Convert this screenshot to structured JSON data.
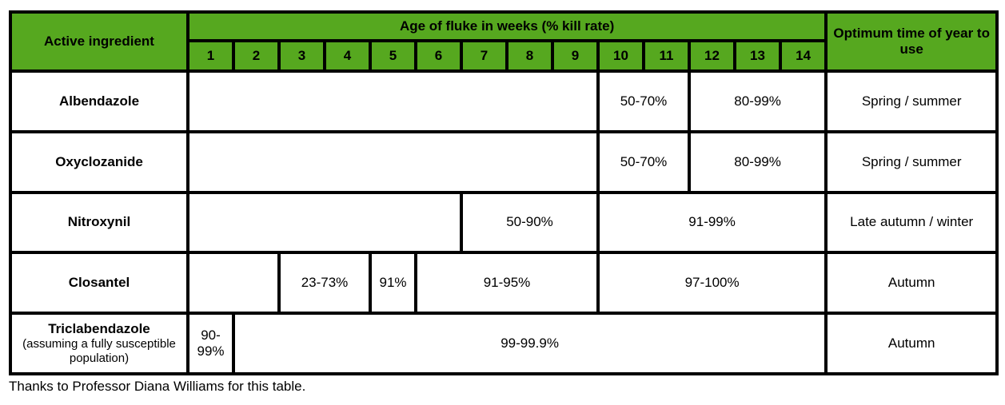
{
  "table": {
    "header": {
      "ingredient": "Active ingredient",
      "age": "Age of fluke in weeks (% kill rate)",
      "optimum": "Optimum time of year to use",
      "weeks": [
        "1",
        "2",
        "3",
        "4",
        "5",
        "6",
        "7",
        "8",
        "9",
        "10",
        "11",
        "12",
        "13",
        "14"
      ]
    },
    "rows": [
      {
        "name": "Albendazole",
        "subtitle": "",
        "segments": [
          {
            "label": "",
            "start_week": 1,
            "end_week": 9
          },
          {
            "label": "50-70%",
            "start_week": 10,
            "end_week": 11
          },
          {
            "label": "80-99%",
            "start_week": 12,
            "end_week": 14
          }
        ],
        "optimum": "Spring / summer"
      },
      {
        "name": "Oxyclozanide",
        "subtitle": "",
        "segments": [
          {
            "label": "",
            "start_week": 1,
            "end_week": 9
          },
          {
            "label": "50-70%",
            "start_week": 10,
            "end_week": 11
          },
          {
            "label": "80-99%",
            "start_week": 12,
            "end_week": 14
          }
        ],
        "optimum": "Spring / summer"
      },
      {
        "name": "Nitroxynil",
        "subtitle": "",
        "segments": [
          {
            "label": "",
            "start_week": 1,
            "end_week": 6
          },
          {
            "label": "50-90%",
            "start_week": 7,
            "end_week": 9
          },
          {
            "label": "91-99%",
            "start_week": 10,
            "end_week": 14
          }
        ],
        "optimum": "Late autumn / winter"
      },
      {
        "name": "Closantel",
        "subtitle": "",
        "segments": [
          {
            "label": "",
            "start_week": 1,
            "end_week": 2
          },
          {
            "label": "23-73%",
            "start_week": 3,
            "end_week": 4
          },
          {
            "label": "91%",
            "start_week": 5,
            "end_week": 5
          },
          {
            "label": "91-95%",
            "start_week": 6,
            "end_week": 9
          },
          {
            "label": "97-100%",
            "start_week": 10,
            "end_week": 14
          }
        ],
        "optimum": "Autumn"
      },
      {
        "name": "Triclabendazole",
        "subtitle": "(assuming a fully susceptible population)",
        "segments": [
          {
            "label": "90-99%",
            "start_week": 1,
            "end_week": 1
          },
          {
            "label": "99-99.9%",
            "start_week": 2,
            "end_week": 14
          }
        ],
        "optimum": "Autumn"
      }
    ]
  },
  "footnote": "Thanks to Professor Diana Williams for this table."
}
